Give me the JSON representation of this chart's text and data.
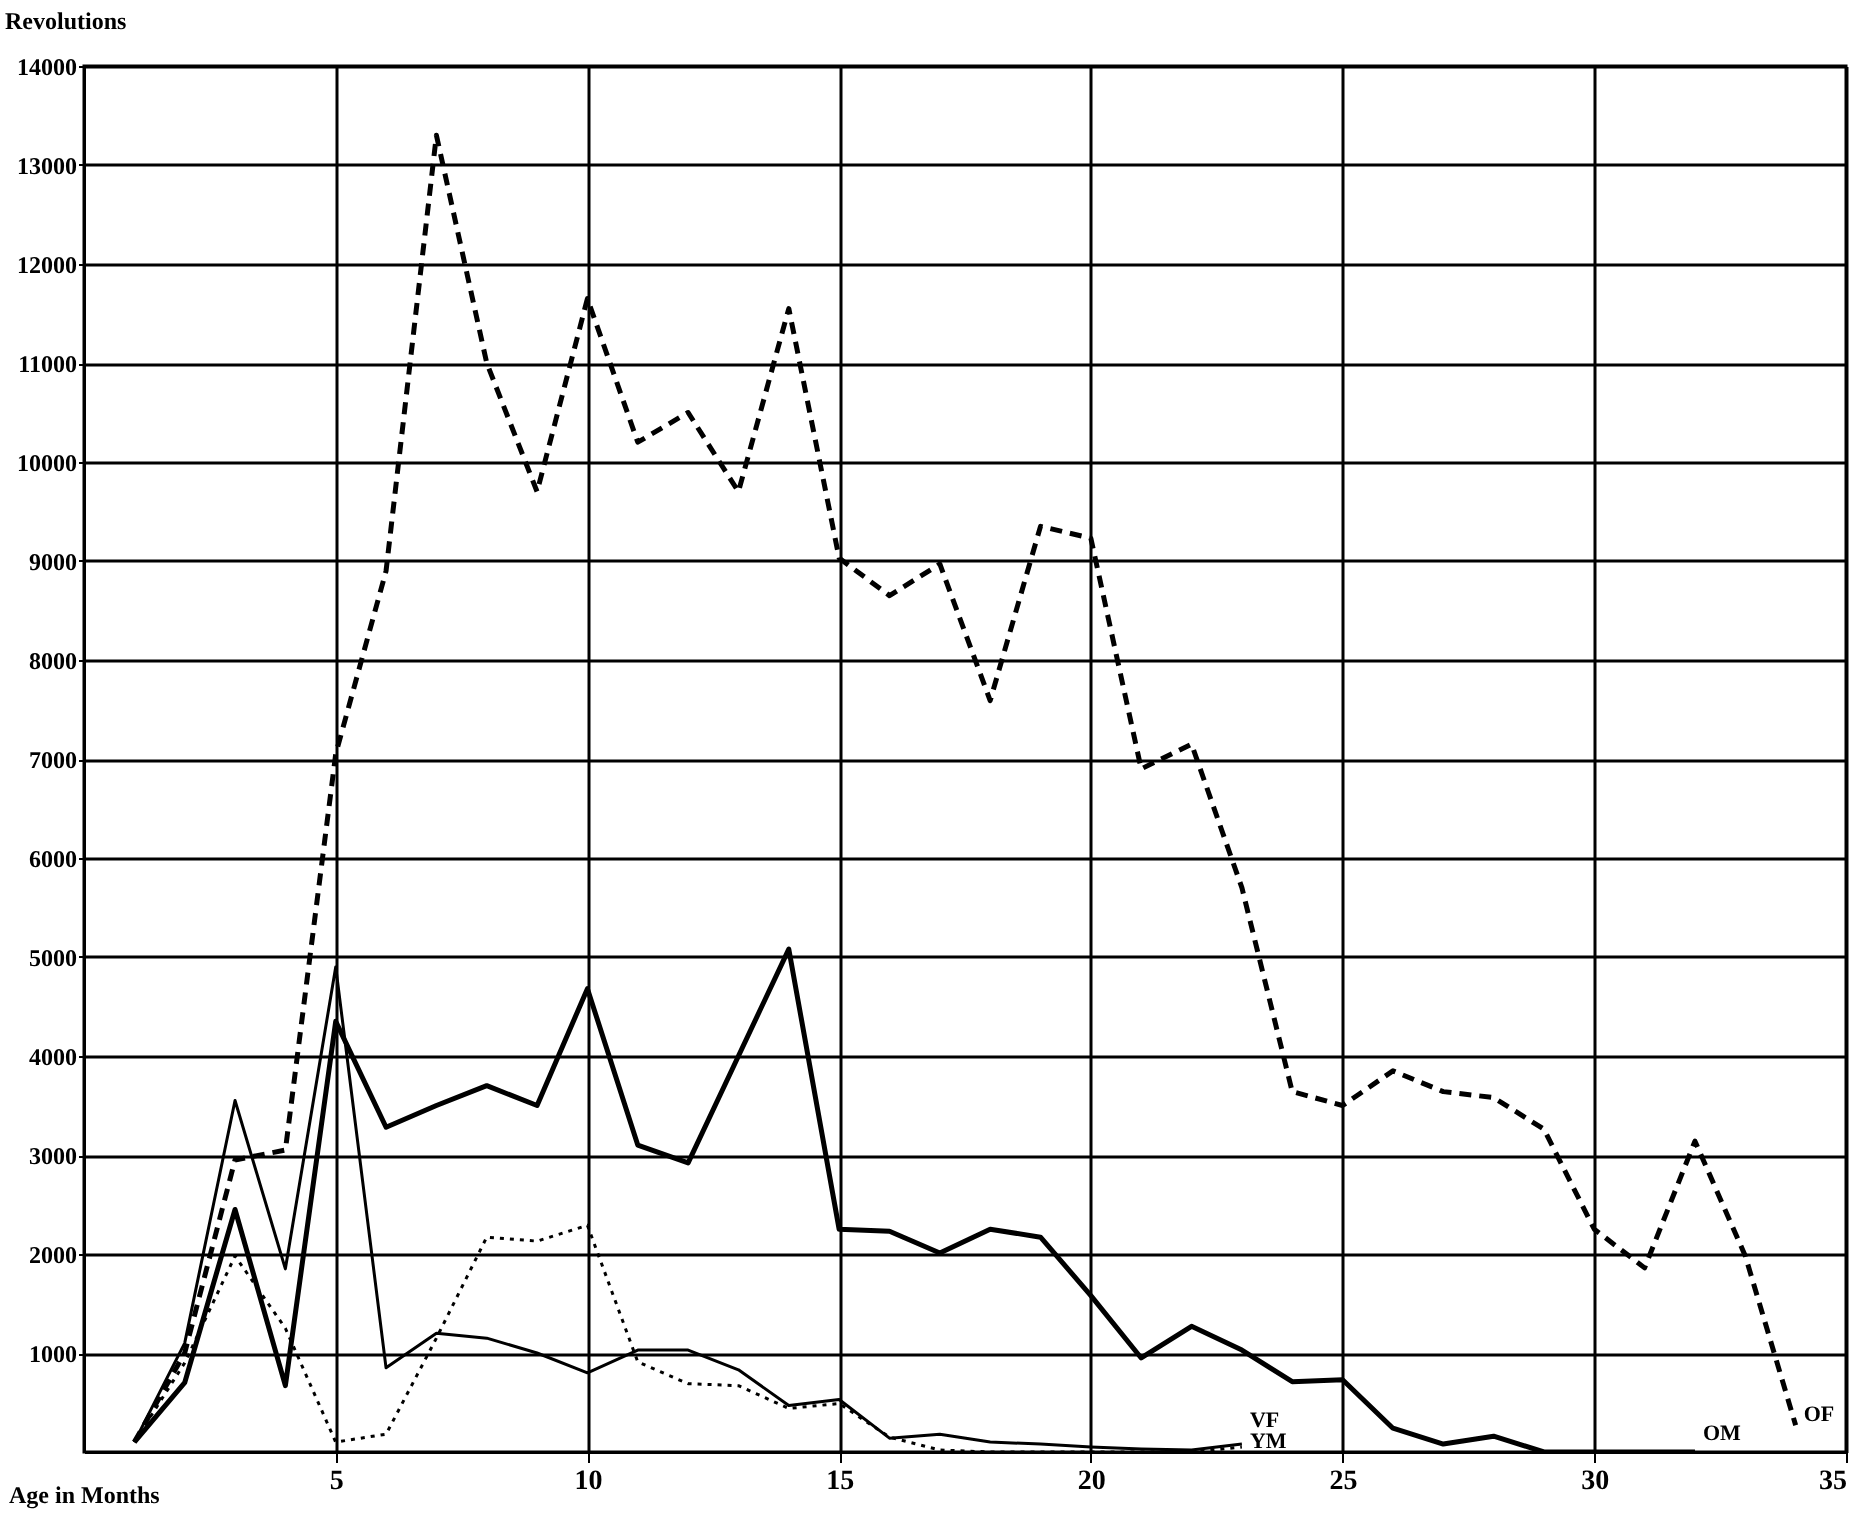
{
  "chart_data": {
    "type": "line",
    "xlabel": "Age in Months",
    "ylabel": "Revolutions",
    "x": [
      1,
      2,
      3,
      4,
      5,
      6,
      7,
      8,
      9,
      10,
      11,
      12,
      13,
      14,
      15,
      16,
      17,
      18,
      19,
      20,
      21,
      22,
      23,
      24,
      25,
      26,
      27,
      28,
      29,
      30,
      31,
      32,
      33,
      34
    ],
    "series": [
      {
        "name": "OF",
        "color": "#000000",
        "line_style": "dashed",
        "values": [
          100,
          1000,
          2950,
          3050,
          7050,
          8900,
          13300,
          11000,
          9700,
          11650,
          10200,
          10500,
          9700,
          11550,
          9030,
          8650,
          8970,
          7590,
          9350,
          9230,
          6900,
          7150,
          5700,
          3640,
          3500,
          3850,
          3640,
          3580,
          3260,
          2250,
          1860,
          3140,
          1980,
          270
        ]
      },
      {
        "name": "OM",
        "color": "#000000",
        "line_style": "solid",
        "values": [
          100,
          700,
          2450,
          670,
          4350,
          3280,
          3500,
          3700,
          3500,
          4680,
          3100,
          2920,
          4000,
          5080,
          2250,
          2230,
          2010,
          2250,
          2170,
          1580,
          950,
          1270,
          1030,
          710,
          730,
          240,
          80,
          160,
          0,
          0,
          0,
          0,
          null,
          null
        ]
      },
      {
        "name": "VF",
        "color": "#000000",
        "line_style": "dotted",
        "values": [
          100,
          900,
          1980,
          1250,
          100,
          180,
          1150,
          2170,
          2130,
          2290,
          910,
          690,
          670,
          440,
          490,
          150,
          20,
          0,
          0,
          0,
          0,
          0,
          50,
          null,
          null,
          null,
          null,
          null,
          null,
          null,
          null,
          null,
          null,
          null
        ]
      },
      {
        "name": "YM",
        "color": "#000000",
        "line_style": "solid",
        "values": [
          100,
          1100,
          3550,
          1850,
          4900,
          850,
          1200,
          1150,
          1000,
          800,
          1030,
          1030,
          830,
          470,
          530,
          140,
          180,
          100,
          80,
          50,
          30,
          20,
          80,
          null,
          null,
          null,
          null,
          null,
          null,
          null,
          null,
          null,
          null,
          null
        ]
      }
    ],
    "xlim": [
      0,
      35
    ],
    "xticks": [
      5,
      10,
      15,
      20,
      25,
      30,
      35
    ],
    "ylim": [
      0,
      14000
    ],
    "yticks": [
      1000,
      2000,
      3000,
      4000,
      5000,
      6000,
      7000,
      8000,
      9000,
      10000,
      11000,
      12000,
      13000,
      14000
    ],
    "grid": true
  }
}
